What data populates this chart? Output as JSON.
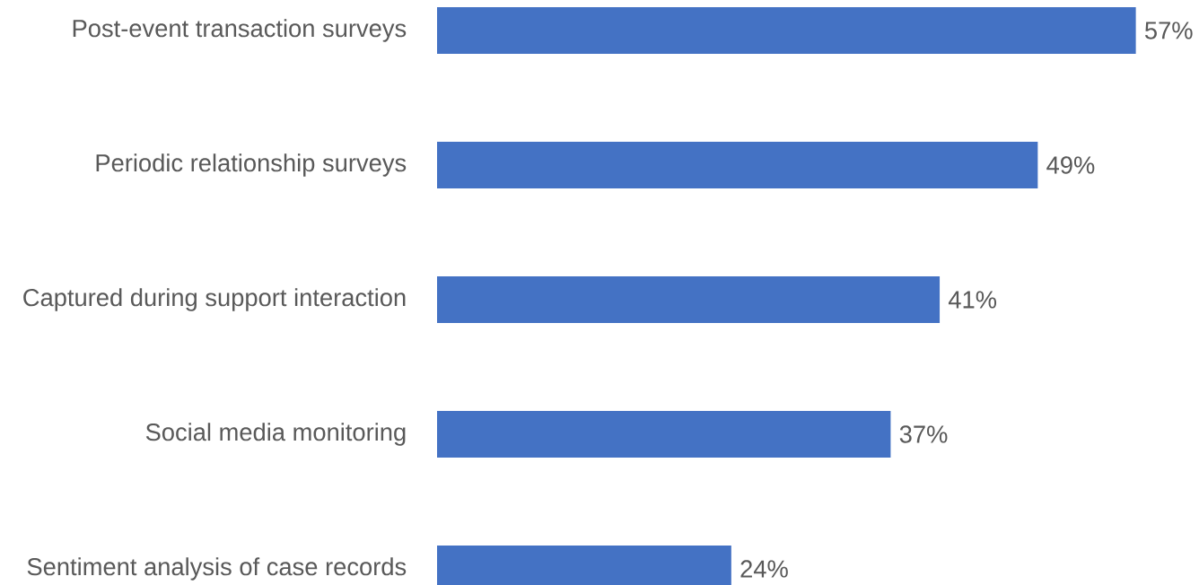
{
  "chart_data": {
    "type": "bar",
    "orientation": "horizontal",
    "categories": [
      "Post-event transaction surveys",
      "Periodic relationship surveys",
      "Captured during support interaction",
      "Social media monitoring",
      "Sentiment analysis of case records"
    ],
    "values": [
      57,
      49,
      41,
      37,
      24
    ],
    "value_labels": [
      "57%",
      "49%",
      "41%",
      "37%",
      "24%"
    ],
    "color": "#4472c4"
  }
}
